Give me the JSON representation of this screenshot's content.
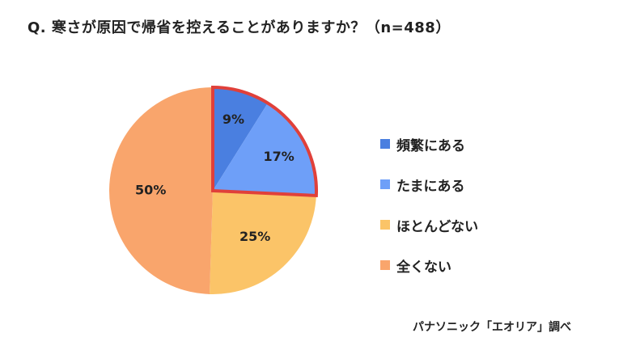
{
  "title": "Q. 寒さが原因で帰省を控えることがありますか？（n=488）",
  "source": "パナソニック「エオリア」調べ",
  "chart_data": {
    "type": "pie",
    "categories": [
      "頻繁にある",
      "たまにある",
      "ほとんどない",
      "全くない"
    ],
    "values": [
      9,
      17,
      25,
      50
    ],
    "labels": [
      "9%",
      "17%",
      "25%",
      "50%"
    ],
    "colors": [
      "#4a7fe0",
      "#6e9ff8",
      "#fbc468",
      "#f9a56c"
    ],
    "highlight": {
      "slices": [
        "頻繁にある",
        "たまにある"
      ],
      "color": "#e0403a"
    },
    "legend_position": "right"
  }
}
